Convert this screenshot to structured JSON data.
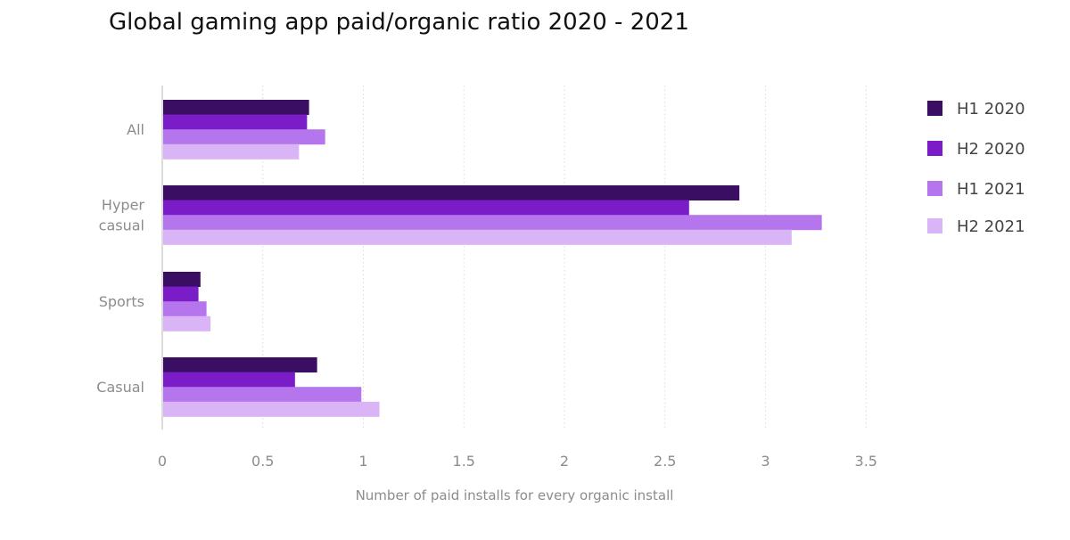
{
  "chart_data": {
    "type": "bar",
    "orientation": "horizontal",
    "title": "Global gaming app paid/organic ratio 2020 - 2021",
    "xlabel": "Number of paid installs for every organic install",
    "ylabel": "",
    "categories": [
      [
        "All"
      ],
      [
        "Hyper",
        "casual"
      ],
      [
        "Sports"
      ],
      [
        "Casual"
      ]
    ],
    "series": [
      {
        "name": "H1 2020",
        "color": "#3a0f63",
        "values": [
          0.73,
          2.87,
          0.19,
          0.77
        ]
      },
      {
        "name": "H2 2020",
        "color": "#7a1cc7",
        "values": [
          0.72,
          2.62,
          0.18,
          0.66
        ]
      },
      {
        "name": "H1 2021",
        "color": "#b575ec",
        "values": [
          0.81,
          3.28,
          0.22,
          0.99
        ]
      },
      {
        "name": "H2 2021",
        "color": "#d9b4f7",
        "values": [
          0.68,
          3.13,
          0.24,
          1.08
        ]
      }
    ],
    "xlim": [
      0,
      3.5
    ],
    "xticks": [
      "0",
      "0.5",
      "1",
      "1.5",
      "2",
      "2.5",
      "3",
      "3.5"
    ],
    "grid": "vertical-dotted",
    "legend_position": "right"
  }
}
